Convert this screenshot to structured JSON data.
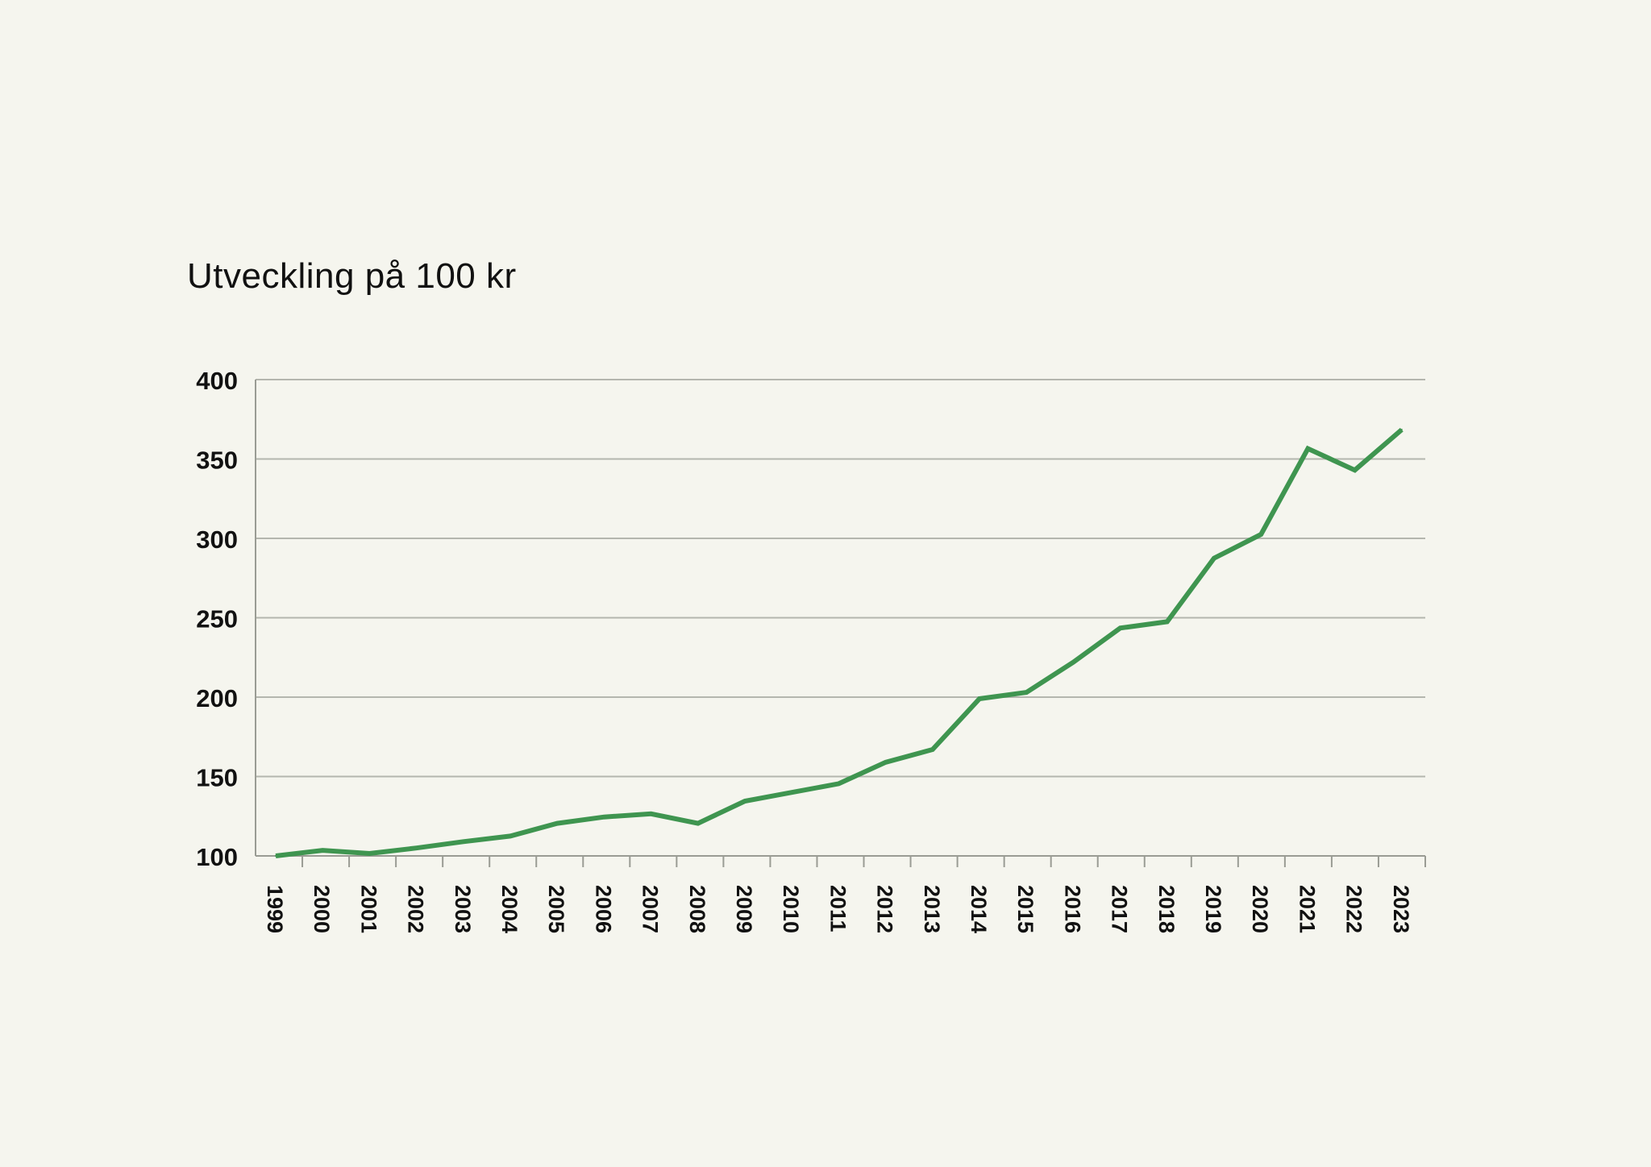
{
  "chart_data": {
    "type": "line",
    "title": "Utveckling på 100 kr",
    "xlabel": "",
    "ylabel": "",
    "ylim": [
      100,
      400
    ],
    "yticks": [
      "100",
      "150",
      "200",
      "250",
      "300",
      "350",
      "400"
    ],
    "grid": true,
    "colors": {
      "line": "#3f9550",
      "grid": "#b4b6ae",
      "axis": "#9a9c94",
      "text": "#111111"
    },
    "categories": [
      "1999",
      "2000",
      "2001",
      "2002",
      "2003",
      "2004",
      "2005",
      "2006",
      "2007",
      "2008",
      "2009",
      "2010",
      "2011",
      "2012",
      "2013",
      "2014",
      "2015",
      "2016",
      "2017",
      "2018",
      "2019",
      "2020",
      "2021",
      "2022",
      "2023"
    ],
    "series": [
      {
        "name": "Utveckling på 100 kr",
        "values": [
          100,
          103.5,
          101.5,
          105,
          109,
          112.5,
          120.5,
          124.5,
          126.5,
          120.5,
          134.5,
          140,
          145.5,
          159,
          167,
          199,
          203,
          222,
          243.5,
          247.5,
          287.5,
          302.5,
          356.5,
          343,
          368.5
        ]
      }
    ]
  }
}
